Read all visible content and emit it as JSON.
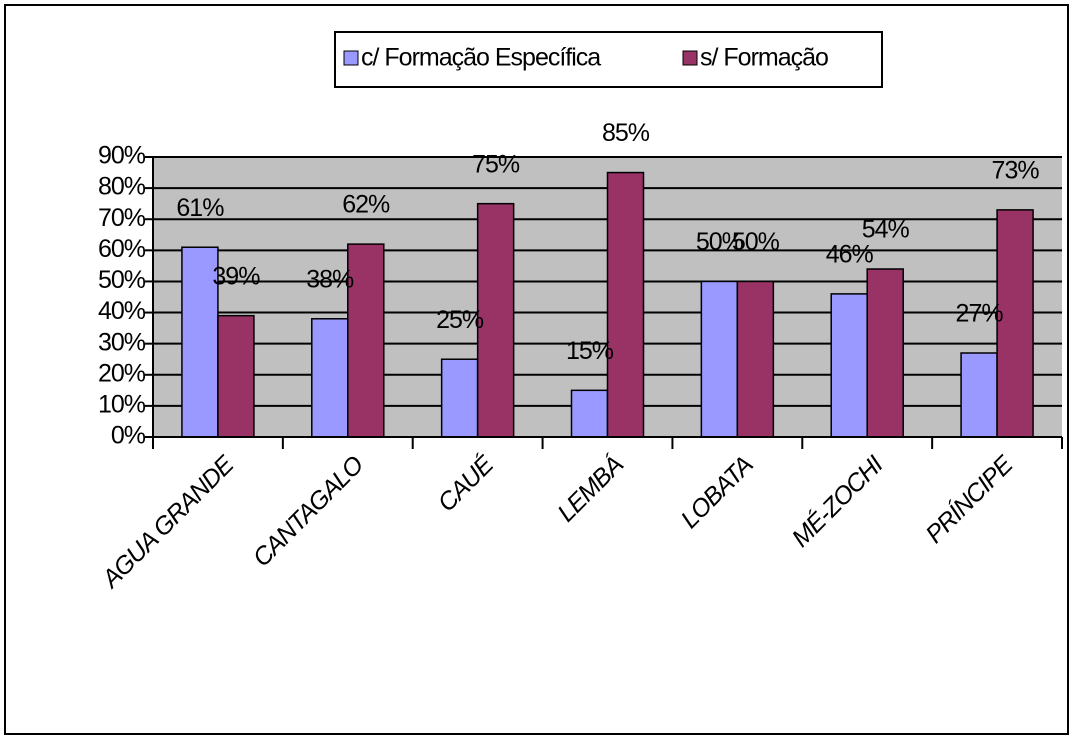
{
  "chart_data": {
    "type": "bar",
    "categories": [
      "AGUA GRANDE",
      "CANTAGALO",
      "CAUÉ",
      "LEMBÁ",
      "LOBATA",
      "MÉ-ZOCHI",
      "PRÍNCIPE"
    ],
    "series": [
      {
        "name": "c/ Formação Específica",
        "color": "#9999ff",
        "values": [
          61,
          38,
          25,
          15,
          50,
          46,
          27
        ],
        "value_labels": [
          "61%",
          "38%",
          "25%",
          "15%",
          "50%",
          "46%",
          "27%"
        ]
      },
      {
        "name": "s/ Formação",
        "color": "#993366",
        "values": [
          39,
          62,
          75,
          85,
          50,
          54,
          73
        ],
        "value_labels": [
          "39%",
          "62%",
          "75%",
          "85%",
          "50%",
          "54%",
          "73%"
        ]
      }
    ],
    "ylim": [
      0,
      90
    ],
    "yticks": [
      {
        "value": 0,
        "label": "0%"
      },
      {
        "value": 10,
        "label": "10%"
      },
      {
        "value": 20,
        "label": "20%"
      },
      {
        "value": 30,
        "label": "30%"
      },
      {
        "value": 40,
        "label": "40%"
      },
      {
        "value": 50,
        "label": "50%"
      },
      {
        "value": 60,
        "label": "60%"
      },
      {
        "value": 70,
        "label": "70%"
      },
      {
        "value": 80,
        "label": "80%"
      },
      {
        "value": 90,
        "label": "90%"
      }
    ],
    "grid": true,
    "legend": "top",
    "plot_background": "#c0c0c0"
  }
}
